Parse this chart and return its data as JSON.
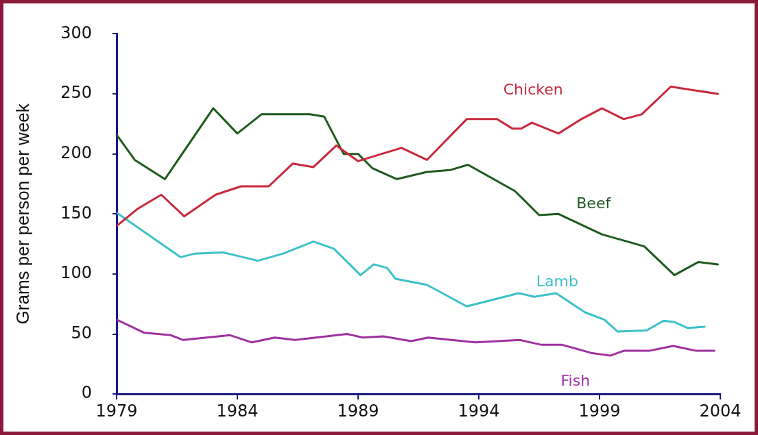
{
  "chart_data": {
    "type": "line",
    "ylabel": "Grams per person per week",
    "xlim": [
      1979,
      2004
    ],
    "xticks": [
      1979,
      1984,
      1989,
      1994,
      1999,
      2004
    ],
    "ylim": [
      0,
      300
    ],
    "yticks": [
      0,
      50,
      100,
      150,
      200,
      250,
      300
    ],
    "grid": false,
    "legend": false,
    "marker": "none",
    "line_style": "solid",
    "series": [
      {
        "name": "Chicken",
        "color": "#c8283c",
        "x": [
          1979,
          1979.85,
          1980.85,
          1981.8,
          1983.1,
          1984.15,
          1985.3,
          1986.3,
          1987.15,
          1988.1,
          1989,
          1990.8,
          1991.85,
          1993.5,
          1994.75,
          1995.4,
          1995.75,
          1996.2,
          1997.3,
          1998.25,
          1999.1,
          2000,
          2000.75,
          2001.95,
          2003.9
        ],
        "values": [
          140,
          154,
          166,
          148,
          166,
          173,
          173,
          192,
          189,
          207,
          194,
          205,
          195,
          229,
          229,
          221,
          221,
          226,
          217,
          229,
          238,
          229,
          233,
          256,
          250
        ]
      },
      {
        "name": "Beef",
        "color": "#1e5a1e",
        "x": [
          1979,
          1979.75,
          1981,
          1983,
          1984,
          1985,
          1987,
          1987.6,
          1988.4,
          1989,
          1989.6,
          1990.6,
          1991.85,
          1992.8,
          1993.55,
          1995.5,
          1996.5,
          1997.3,
          1999.1,
          2000.85,
          2002.1,
          2003.1,
          2003.9
        ],
        "values": [
          216,
          195,
          179,
          238,
          217,
          233,
          233,
          231,
          200,
          200,
          188,
          179,
          185,
          186.5,
          191,
          169,
          149,
          150,
          133,
          123,
          99,
          110,
          108
        ]
      },
      {
        "name": "Lamb",
        "color": "#3cc0c8",
        "x": [
          1979,
          1981.65,
          1982.25,
          1983.4,
          1984.85,
          1985.9,
          1987.15,
          1988,
          1989.1,
          1989.65,
          1990.2,
          1990.55,
          1991.85,
          1993.5,
          1995.65,
          1996.3,
          1997.2,
          1998.4,
          1999.2,
          1999.75,
          2000.95,
          2001.65,
          2002.1,
          2002.65,
          2003.35
        ],
        "values": [
          151,
          114,
          117,
          118,
          111,
          117,
          127,
          121,
          99,
          108,
          105,
          96,
          91,
          73,
          84,
          81,
          84,
          68,
          62,
          52,
          53,
          61,
          60,
          55,
          56
        ]
      },
      {
        "name": "Fish",
        "color": "#a030a0",
        "x": [
          1979,
          1980.15,
          1981.25,
          1981.75,
          1983.7,
          1984.6,
          1985.55,
          1986.4,
          1988.55,
          1989.2,
          1990.05,
          1991.2,
          1991.9,
          1993.85,
          1995.7,
          1996.6,
          1997.45,
          1998.7,
          1999.45,
          2000,
          2001.05,
          2002.05,
          2003,
          2003.75
        ],
        "values": [
          62,
          51,
          49,
          45,
          49,
          43,
          47,
          45,
          50,
          47,
          48,
          44,
          47,
          43,
          45,
          41,
          41,
          34,
          32,
          36,
          36,
          40,
          36,
          36
        ]
      }
    ]
  }
}
